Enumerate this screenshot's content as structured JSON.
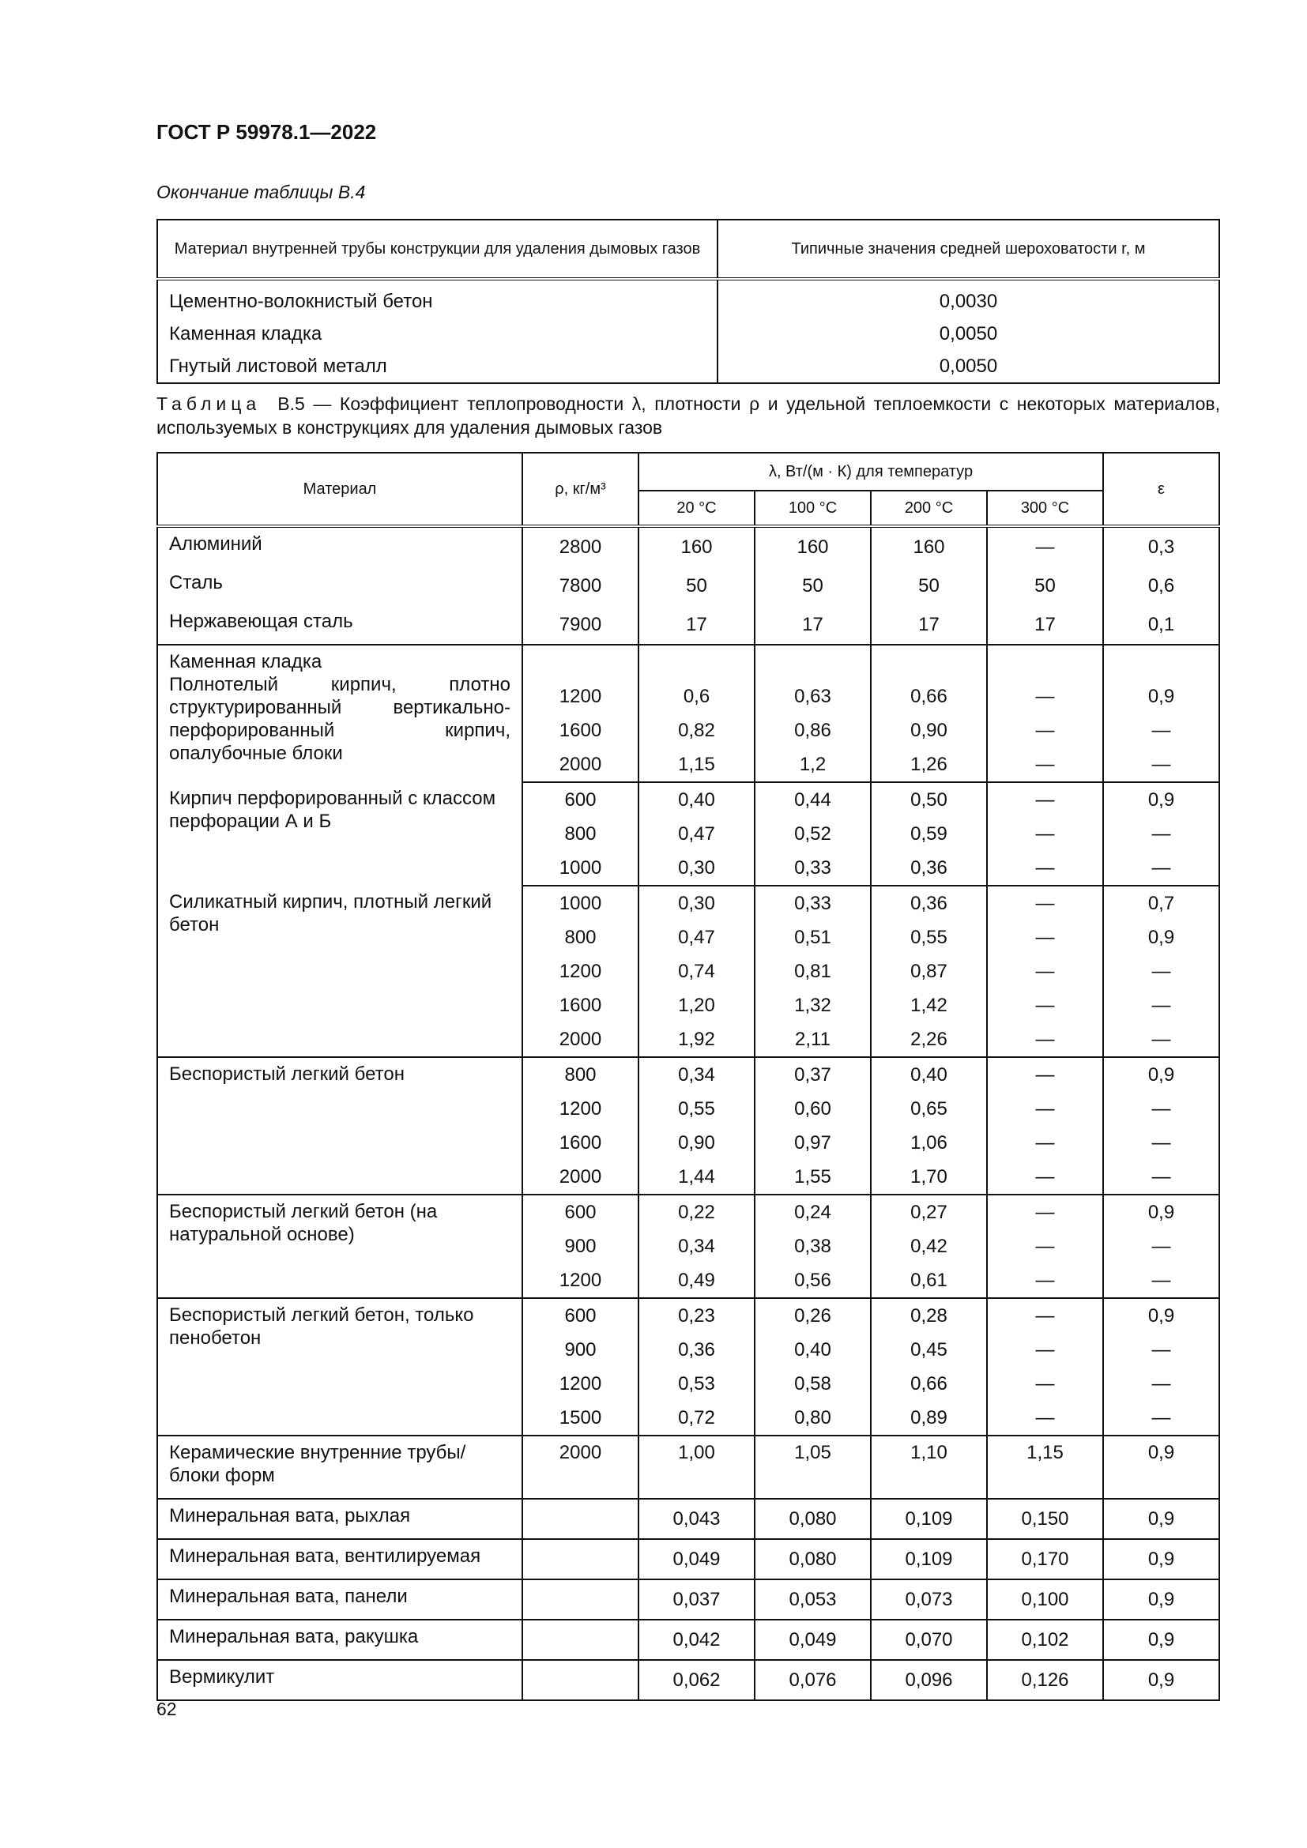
{
  "header": {
    "doc_id": "ГОСТ Р 59978.1—2022"
  },
  "table_b4": {
    "continuation_label": "Окончание таблицы В.4",
    "columns": [
      "Материал внутренней трубы конструкции для удаления дымовых газов",
      "Типичные значения средней шероховатости r, м"
    ],
    "rows": [
      {
        "material": "Цементно-волокнистый бетон",
        "value": "0,0030"
      },
      {
        "material": "Каменная кладка",
        "value": "0,0050"
      },
      {
        "material": "Гнутый листовой металл",
        "value": "0,0050"
      }
    ]
  },
  "table_b5": {
    "caption_label": "Таблица",
    "caption_text": "В.5 — Коэффициент теплопроводности λ, плотности ρ и удельной теплоемкости с некоторых материалов, используемых в конструкциях для удаления дымовых газов",
    "headers": {
      "material": "Материал",
      "rho": "ρ, кг/м³",
      "lambda": "λ, Вт/(м · К) для температур",
      "t20": "20 °C",
      "t100": "100 °C",
      "t200": "200 °C",
      "t300": "300 °C",
      "eps": "ε"
    },
    "groups": [
      {
        "rows": [
          {
            "material": "Алюминий",
            "v": [
              "2800",
              "160",
              "160",
              "160",
              "—",
              "0,3"
            ]
          },
          {
            "material": "Сталь",
            "v": [
              "7800",
              "50",
              "50",
              "50",
              "50",
              "0,6"
            ]
          },
          {
            "material": "Нержавеющая сталь",
            "v": [
              "7900",
              "17",
              "17",
              "17",
              "17",
              "0,1"
            ]
          }
        ]
      },
      {
        "material": "Каменная кладка",
        "material_detail": "Полнотелый кирпич, плотно структурированный вертикально-перфорированный кирпич, опалубочные блоки",
        "rows": [
          {
            "v": [
              "",
              "",
              "",
              "",
              "",
              ""
            ]
          },
          {
            "v": [
              "1200",
              "0,6",
              "0,63",
              "0,66",
              "—",
              "0,9"
            ]
          },
          {
            "v": [
              "1600",
              "0,82",
              "0,86",
              "0,90",
              "—",
              "—"
            ]
          },
          {
            "v": [
              "2000",
              "1,15",
              "1,2",
              "1,26",
              "—",
              "—"
            ]
          }
        ]
      },
      {
        "material": "Кирпич перфорированный с классом перфорации А и Б",
        "rows": [
          {
            "v": [
              "600",
              "0,40",
              "0,44",
              "0,50",
              "—",
              "0,9"
            ]
          },
          {
            "v": [
              "800",
              "0,47",
              "0,52",
              "0,59",
              "—",
              "—"
            ]
          },
          {
            "v": [
              "1000",
              "0,30",
              "0,33",
              "0,36",
              "—",
              "—"
            ]
          }
        ]
      },
      {
        "material": "Силикатный кирпич, плотный легкий бетон",
        "rows": [
          {
            "v": [
              "1000",
              "0,30",
              "0,33",
              "0,36",
              "—",
              "0,7"
            ]
          },
          {
            "v": [
              "800",
              "0,47",
              "0,51",
              "0,55",
              "—",
              "0,9"
            ]
          },
          {
            "v": [
              "1200",
              "0,74",
              "0,81",
              "0,87",
              "—",
              "—"
            ]
          },
          {
            "v": [
              "1600",
              "1,20",
              "1,32",
              "1,42",
              "—",
              "—"
            ]
          },
          {
            "v": [
              "2000",
              "1,92",
              "2,11",
              "2,26",
              "—",
              "—"
            ]
          }
        ]
      },
      {
        "material": "Беспористый легкий бетон",
        "rows": [
          {
            "v": [
              "800",
              "0,34",
              "0,37",
              "0,40",
              "—",
              "0,9"
            ]
          },
          {
            "v": [
              "1200",
              "0,55",
              "0,60",
              "0,65",
              "—",
              "—"
            ]
          },
          {
            "v": [
              "1600",
              "0,90",
              "0,97",
              "1,06",
              "—",
              "—"
            ]
          },
          {
            "v": [
              "2000",
              "1,44",
              "1,55",
              "1,70",
              "—",
              "—"
            ]
          }
        ]
      },
      {
        "material": "Беспористый легкий бетон (на натуральной основе)",
        "rows": [
          {
            "v": [
              "600",
              "0,22",
              "0,24",
              "0,27",
              "—",
              "0,9"
            ]
          },
          {
            "v": [
              "900",
              "0,34",
              "0,38",
              "0,42",
              "—",
              "—"
            ]
          },
          {
            "v": [
              "1200",
              "0,49",
              "0,56",
              "0,61",
              "—",
              "—"
            ]
          }
        ]
      },
      {
        "material": "Беспористый легкий бетон, только пенобетон",
        "rows": [
          {
            "v": [
              "600",
              "0,23",
              "0,26",
              "0,28",
              "—",
              "0,9"
            ]
          },
          {
            "v": [
              "900",
              "0,36",
              "0,40",
              "0,45",
              "—",
              "—"
            ]
          },
          {
            "v": [
              "1200",
              "0,53",
              "0,58",
              "0,66",
              "—",
              "—"
            ]
          },
          {
            "v": [
              "1500",
              "0,72",
              "0,80",
              "0,89",
              "—",
              "—"
            ]
          }
        ]
      },
      {
        "material": "Керамические внутренние трубы/ блоки форм",
        "rows": [
          {
            "v": [
              "2000",
              "1,00",
              "1,05",
              "1,10",
              "1,15",
              "0,9"
            ]
          }
        ]
      },
      {
        "material": "Минеральная вата, рыхлая",
        "rows": [
          {
            "v": [
              "",
              "0,043",
              "0,080",
              "0,109",
              "0,150",
              "0,9"
            ]
          }
        ]
      },
      {
        "material": "Минеральная вата, вентилируемая",
        "rows": [
          {
            "v": [
              "",
              "0,049",
              "0,080",
              "0,109",
              "0,170",
              "0,9"
            ]
          }
        ]
      },
      {
        "material": "Минеральная вата, панели",
        "rows": [
          {
            "v": [
              "",
              "0,037",
              "0,053",
              "0,073",
              "0,100",
              "0,9"
            ]
          }
        ]
      },
      {
        "material": "Минеральная вата, ракушка",
        "rows": [
          {
            "v": [
              "",
              "0,042",
              "0,049",
              "0,070",
              "0,102",
              "0,9"
            ]
          }
        ]
      },
      {
        "material": "Вермикулит",
        "rows": [
          {
            "v": [
              "",
              "0,062",
              "0,076",
              "0,096",
              "0,126",
              "0,9"
            ]
          }
        ]
      }
    ]
  },
  "footer": {
    "page_number": "62"
  }
}
